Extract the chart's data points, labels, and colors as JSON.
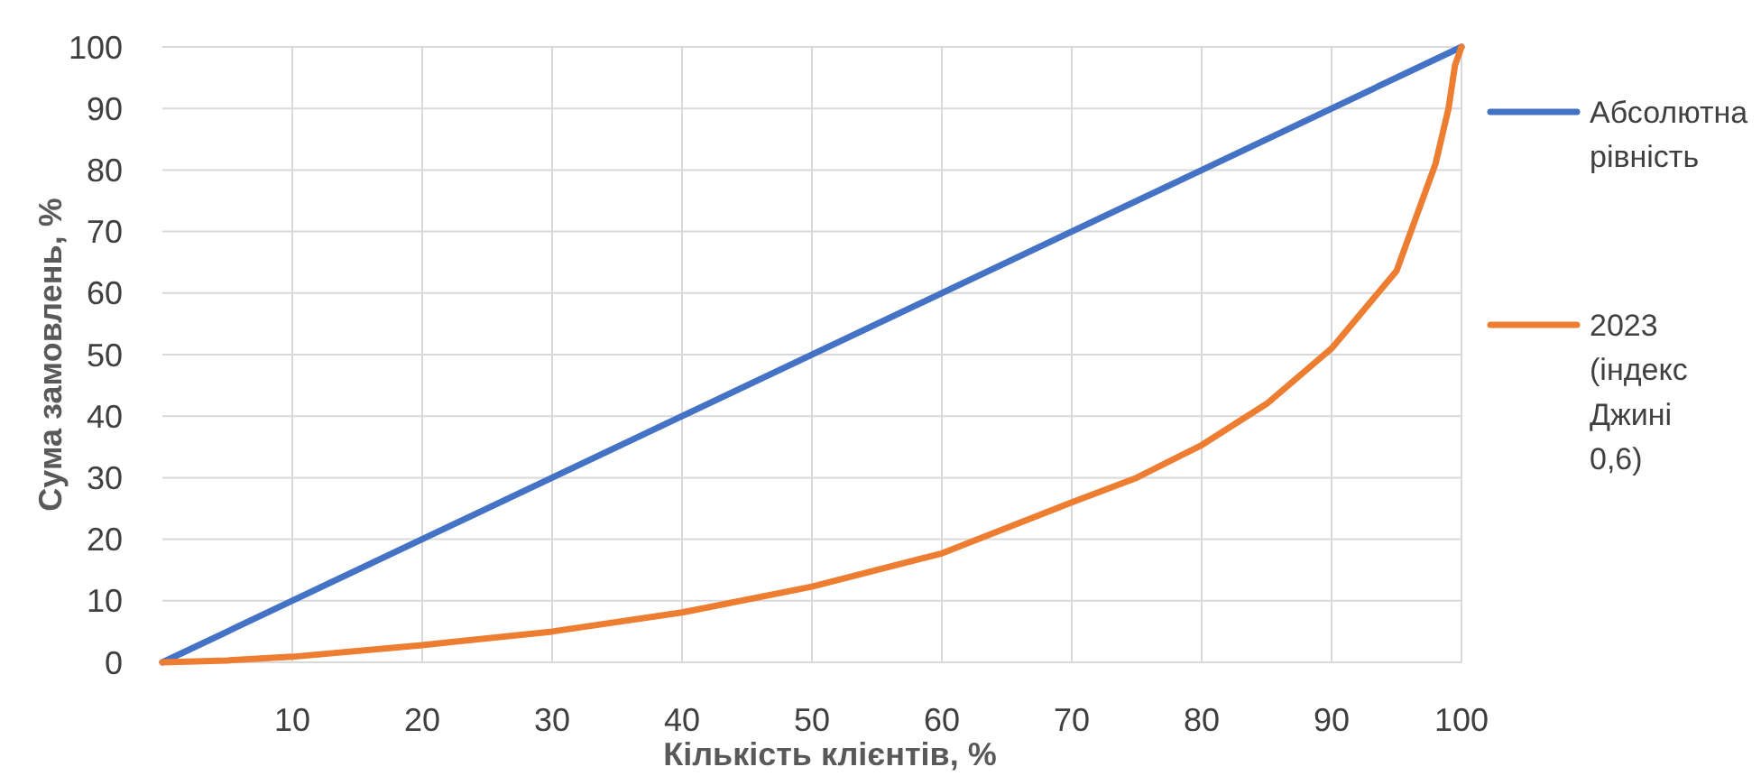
{
  "chart_data": {
    "type": "line",
    "xlabel": "Кількість клієнтів, %",
    "ylabel": "Сума замовлень, %",
    "xlim": [
      0,
      100
    ],
    "ylim": [
      0,
      100
    ],
    "xticks": [
      10,
      20,
      30,
      40,
      50,
      60,
      70,
      80,
      90,
      100
    ],
    "yticks": [
      0,
      10,
      20,
      30,
      40,
      50,
      60,
      70,
      80,
      90,
      100
    ],
    "grid": true,
    "legend": "right",
    "marker": "none",
    "line_style": "solid",
    "series": [
      {
        "name": "Абсолютна рівність",
        "color": "#4472c4",
        "x": [
          0,
          100
        ],
        "values": [
          0,
          100
        ]
      },
      {
        "name": "2023 (індекс Джині 0,6)",
        "color": "#ed7d31",
        "x": [
          0,
          5,
          10,
          20,
          30,
          40,
          50,
          60,
          70,
          75,
          80,
          85,
          90,
          95,
          98,
          99,
          99.5,
          100
        ],
        "values": [
          0,
          0.3,
          0.9,
          2.8,
          5,
          8.1,
          12.3,
          17.7,
          26,
          30,
          35.3,
          42,
          51,
          63.6,
          81,
          90,
          97,
          100
        ]
      }
    ]
  }
}
